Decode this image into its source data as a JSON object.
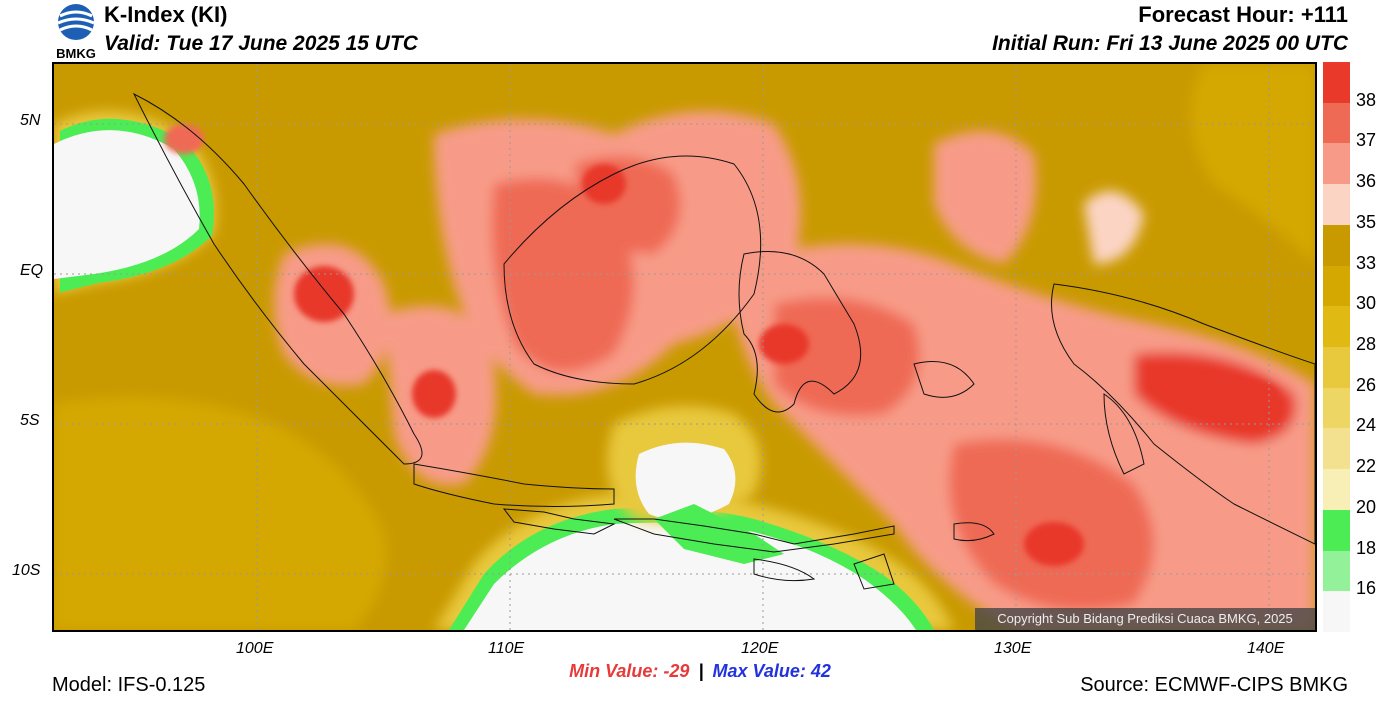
{
  "header": {
    "logo_text": "BMKG",
    "title": "K-Index (KI)",
    "valid": "Valid: Tue 17 June 2025 15 UTC",
    "forecast_hour": "Forecast Hour: +111",
    "initial_run": "Initial Run: Fri 13 June 2025 00 UTC"
  },
  "axes": {
    "y_ticks": [
      "5N",
      "EQ",
      "5S",
      "10S"
    ],
    "x_ticks": [
      "100E",
      "110E",
      "120E",
      "130E",
      "140E"
    ]
  },
  "stats": {
    "min_label": "Min Value: -29",
    "separator": "|",
    "max_label": "Max Value:  42"
  },
  "footer": {
    "model": "Model: IFS-0.125",
    "source": "Source: ECMWF-CIPS BMKG",
    "copyright": "Copyright Sub Bidang Prediksi Cuaca BMKG, 2025"
  },
  "colorbar": {
    "labels": [
      "38",
      "37",
      "36",
      "35",
      "33",
      "30",
      "28",
      "26",
      "24",
      "22",
      "20",
      "18",
      "16"
    ],
    "colors": [
      "#e8392a",
      "#ef6a55",
      "#f79b88",
      "#fcd4c4",
      "#c99a00",
      "#d4a800",
      "#e0ba12",
      "#e8c83c",
      "#eed664",
      "#f3e190",
      "#f8efb6",
      "#4cec55",
      "#93f19a",
      "#f7f7f7"
    ]
  }
}
